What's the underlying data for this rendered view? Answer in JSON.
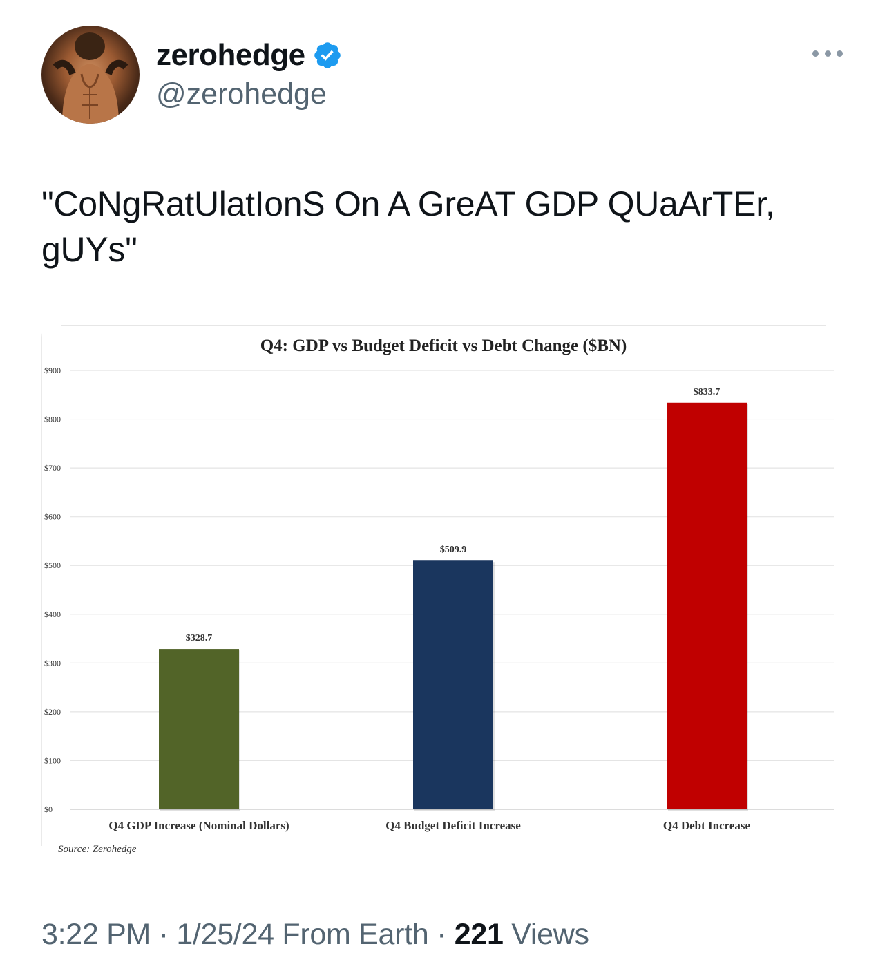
{
  "author": {
    "display_name": "zerohedge",
    "handle": "@zerohedge",
    "verified": true,
    "verified_color": "#1d9bf0",
    "avatar_icon": "avatar-photo"
  },
  "tweet": {
    "text": "\"CoNgRatUlatIonS On A GreAT GDP QUaArTEr, gUYs\""
  },
  "footer": {
    "time": "3:22 PM",
    "sep1": " · ",
    "date": "1/25/24",
    "source": " From Earth",
    "sep2": " · ",
    "views_count": "221",
    "views_label": " Views"
  },
  "chart_data": {
    "type": "bar",
    "title": "Q4: GDP vs Budget Deficit vs Debt Change ($BN)",
    "categories": [
      "Q4 GDP Increase (Nominal Dollars)",
      "Q4 Budget Deficit Increase",
      "Q4 Debt Increase"
    ],
    "values": [
      328.7,
      509.9,
      833.7
    ],
    "value_labels": [
      "$328.7",
      "$509.9",
      "$833.7"
    ],
    "colors": [
      "#526428",
      "#1a365e",
      "#c00000"
    ],
    "yticks": [
      "$0",
      "$100",
      "$200",
      "$300",
      "$400",
      "$500",
      "$600",
      "$700",
      "$800",
      "$900"
    ],
    "ylim": [
      0,
      900
    ],
    "grid": true,
    "source": "Source: Zerohedge"
  }
}
